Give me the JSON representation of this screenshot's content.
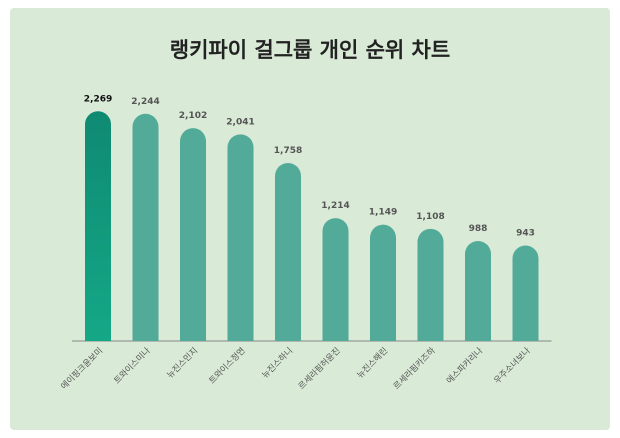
{
  "chart_data": {
    "type": "bar",
    "title": "랭키파이 걸그룹 개인 순위 차트",
    "categories": [
      "에이핑크윤보미",
      "트와이스미나",
      "뉴진스민지",
      "트와이스정연",
      "뉴진스하니",
      "르세라핌허윤진",
      "뉴진스해린",
      "르세라핌카즈하",
      "에스파카리나",
      "우주소녀보나"
    ],
    "values": [
      2269,
      2244,
      2102,
      2041,
      1758,
      1214,
      1149,
      1108,
      988,
      943
    ],
    "value_labels": [
      "2,269",
      "2,244",
      "2,102",
      "2,041",
      "1,758",
      "1,214",
      "1,149",
      "1,108",
      "988",
      "943"
    ],
    "xlabel": "",
    "ylabel": "",
    "ylim": [
      0,
      2400
    ],
    "grid": false,
    "legend": "none",
    "colors": {
      "bar": "#52ab98",
      "highlight_top": "#0f8a72",
      "highlight_bottom": "#14a887",
      "background": "#d9ead7",
      "axis": "#888888"
    }
  }
}
